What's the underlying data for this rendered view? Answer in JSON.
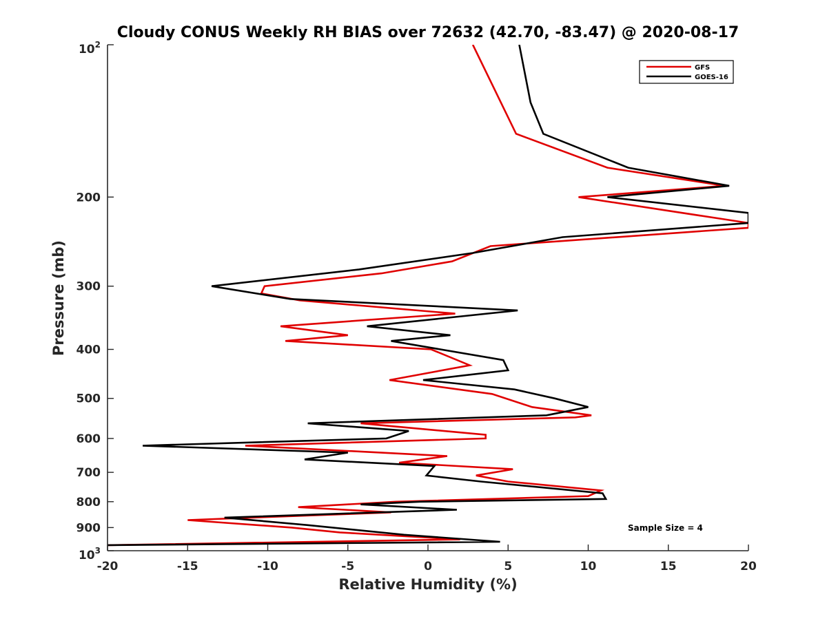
{
  "chart_data": {
    "type": "line",
    "title": "Cloudy CONUS Weekly RH BIAS over 72632 (42.70, -83.47) @ 2020-08-17",
    "xlabel": "Relative Humidity (%)",
    "ylabel": "Pressure (mb)",
    "xlim": [
      -20,
      20
    ],
    "ylim": [
      100,
      1000
    ],
    "y_scale": "log",
    "y_reversed": true,
    "grid": false,
    "legend_position": "top-right",
    "annotation": "Sample Size = 4",
    "x_ticks": [
      "-20",
      "-15",
      "-10",
      "-5",
      "0",
      "5",
      "10",
      "15",
      "20"
    ],
    "x_tick_values": [
      -20,
      -15,
      -10,
      -5,
      0,
      5,
      10,
      15,
      20
    ],
    "y_ticks": [
      {
        "value": 100,
        "label": "10",
        "exp": "2"
      },
      {
        "value": 200,
        "label": "200"
      },
      {
        "value": 300,
        "label": "300"
      },
      {
        "value": 400,
        "label": "400"
      },
      {
        "value": 500,
        "label": "500"
      },
      {
        "value": 600,
        "label": "600"
      },
      {
        "value": 700,
        "label": "700"
      },
      {
        "value": 800,
        "label": "800"
      },
      {
        "value": 900,
        "label": "900"
      },
      {
        "value": 1000,
        "label": "10",
        "exp": "3"
      }
    ],
    "series": [
      {
        "name": "GFS",
        "color": "#e00000",
        "points": [
          [
            2.8,
            100
          ],
          [
            5.5,
            150
          ],
          [
            11.2,
            175
          ],
          [
            18.5,
            190
          ],
          [
            9.4,
            200
          ],
          [
            20.0,
            225
          ],
          [
            20.0,
            230
          ],
          [
            3.9,
            250
          ],
          [
            1.5,
            268
          ],
          [
            -2.9,
            283
          ],
          [
            -10.2,
            300
          ],
          [
            -10.4,
            310
          ],
          [
            -8.0,
            320
          ],
          [
            1.7,
            340
          ],
          [
            -9.2,
            360
          ],
          [
            -5.0,
            375
          ],
          [
            -8.9,
            385
          ],
          [
            0.2,
            400
          ],
          [
            2.6,
            430
          ],
          [
            -2.4,
            460
          ],
          [
            4.0,
            490
          ],
          [
            6.5,
            520
          ],
          [
            10.2,
            540
          ],
          [
            9.2,
            545
          ],
          [
            -4.2,
            560
          ],
          [
            3.6,
            590
          ],
          [
            3.6,
            600
          ],
          [
            -11.4,
            620
          ],
          [
            1.2,
            650
          ],
          [
            -1.8,
            670
          ],
          [
            5.3,
            690
          ],
          [
            3.0,
            710
          ],
          [
            5.0,
            730
          ],
          [
            10.8,
            760
          ],
          [
            10.0,
            780
          ],
          [
            -2.0,
            800
          ],
          [
            -8.1,
            820
          ],
          [
            -2.3,
            840
          ],
          [
            -15.0,
            870
          ],
          [
            -8.5,
            900
          ],
          [
            -5.5,
            920
          ],
          [
            2.0,
            950
          ],
          [
            -20.0,
            975
          ]
        ]
      },
      {
        "name": "GOES-16",
        "color": "#000000",
        "points": [
          [
            5.7,
            100
          ],
          [
            6.4,
            130
          ],
          [
            7.2,
            150
          ],
          [
            12.5,
            175
          ],
          [
            18.8,
            190
          ],
          [
            11.2,
            200
          ],
          [
            20.0,
            215
          ],
          [
            20.0,
            225
          ],
          [
            8.4,
            240
          ],
          [
            2.8,
            258
          ],
          [
            -4.3,
            278
          ],
          [
            -13.5,
            300
          ],
          [
            -8.6,
            318
          ],
          [
            5.6,
            335
          ],
          [
            -3.8,
            360
          ],
          [
            1.4,
            375
          ],
          [
            -2.3,
            385
          ],
          [
            4.7,
            420
          ],
          [
            5.0,
            440
          ],
          [
            -0.3,
            460
          ],
          [
            5.4,
            480
          ],
          [
            7.9,
            500
          ],
          [
            10.0,
            520
          ],
          [
            7.4,
            540
          ],
          [
            -7.5,
            560
          ],
          [
            -1.2,
            580
          ],
          [
            -2.6,
            600
          ],
          [
            -17.8,
            620
          ],
          [
            -5.0,
            640
          ],
          [
            -7.7,
            660
          ],
          [
            0.4,
            680
          ],
          [
            -0.1,
            710
          ],
          [
            3.3,
            730
          ],
          [
            10.9,
            770
          ],
          [
            11.1,
            790
          ],
          [
            -0.5,
            800
          ],
          [
            -4.2,
            810
          ],
          [
            1.8,
            830
          ],
          [
            -12.7,
            860
          ],
          [
            -7.5,
            890
          ],
          [
            -1.5,
            930
          ],
          [
            4.5,
            960
          ],
          [
            -20.0,
            975
          ]
        ]
      }
    ]
  }
}
